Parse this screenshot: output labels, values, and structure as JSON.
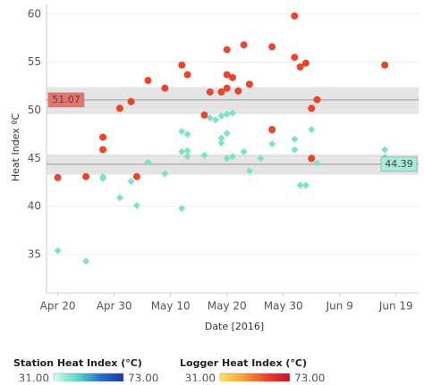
{
  "chart_data": {
    "type": "scatter",
    "x_label": "Date [2016]",
    "y_label": "Heat Index ºC",
    "xlim": [
      "2016-04-18",
      "2016-06-23"
    ],
    "xticks": [
      {
        "value": "2016-04-20",
        "label": "Apr 20"
      },
      {
        "value": "2016-04-30",
        "label": "Apr 30"
      },
      {
        "value": "2016-05-10",
        "label": "May 10"
      },
      {
        "value": "2016-05-20",
        "label": "May 20"
      },
      {
        "value": "2016-05-30",
        "label": "May 30"
      },
      {
        "value": "2016-06-09",
        "label": "Jun 9"
      },
      {
        "value": "2016-06-19",
        "label": "Jun 19"
      }
    ],
    "ylim": [
      31,
      61
    ],
    "yticks": [
      35,
      40,
      45,
      50,
      55,
      60
    ],
    "grid": true,
    "series": [
      {
        "name": "Station Heat Index (°C)",
        "color": "#7de3c8",
        "marker": "diamond",
        "x": [
          "2016-04-20",
          "2016-04-25",
          "2016-04-28",
          "2016-04-28",
          "2016-05-01",
          "2016-05-03",
          "2016-05-04",
          "2016-05-06",
          "2016-05-09",
          "2016-05-12",
          "2016-05-12",
          "2016-05-12",
          "2016-05-13",
          "2016-05-13",
          "2016-05-13",
          "2016-05-16",
          "2016-05-17",
          "2016-05-18",
          "2016-05-19",
          "2016-05-20",
          "2016-05-20",
          "2016-05-21",
          "2016-05-19",
          "2016-05-19",
          "2016-05-20",
          "2016-05-20",
          "2016-05-21",
          "2016-05-23",
          "2016-05-24",
          "2016-05-26",
          "2016-05-28",
          "2016-05-28",
          "2016-06-01",
          "2016-06-01",
          "2016-06-02",
          "2016-06-03",
          "2016-06-04",
          "2016-06-04",
          "2016-06-05",
          "2016-06-17",
          "2016-06-17"
        ],
        "values": [
          35.4,
          34.3,
          43.1,
          42.9,
          40.9,
          42.6,
          40.1,
          44.6,
          43.4,
          39.8,
          47.8,
          45.7,
          45.8,
          47.5,
          45.2,
          45.3,
          49.2,
          49.0,
          49.4,
          49.6,
          49.6,
          49.7,
          46.6,
          47.1,
          47.6,
          45.0,
          45.2,
          45.7,
          43.7,
          45.0,
          46.5,
          47.8,
          47.0,
          45.9,
          42.2,
          42.2,
          48.0,
          44.9,
          44.5,
          45.9,
          45.1
        ]
      },
      {
        "name": "Logger Heat Index (°C)",
        "color": "#e8452c",
        "marker": "circle",
        "x": [
          "2016-04-20",
          "2016-04-25",
          "2016-04-28",
          "2016-04-28",
          "2016-05-01",
          "2016-05-03",
          "2016-05-04",
          "2016-05-06",
          "2016-05-09",
          "2016-05-12",
          "2016-05-13",
          "2016-05-16",
          "2016-05-17",
          "2016-05-19",
          "2016-05-20",
          "2016-05-20",
          "2016-05-20",
          "2016-05-21",
          "2016-05-22",
          "2016-05-23",
          "2016-05-24",
          "2016-05-28",
          "2016-05-28",
          "2016-06-01",
          "2016-06-01",
          "2016-06-02",
          "2016-06-03",
          "2016-06-04",
          "2016-06-05",
          "2016-06-04",
          "2016-06-17"
        ],
        "values": [
          43.0,
          43.1,
          47.2,
          45.9,
          50.2,
          50.9,
          43.1,
          53.1,
          52.3,
          54.7,
          53.7,
          49.5,
          51.9,
          51.9,
          52.3,
          56.3,
          53.7,
          53.4,
          52.0,
          56.8,
          52.7,
          48.0,
          56.6,
          59.8,
          55.5,
          54.5,
          54.9,
          50.2,
          51.1,
          45.0,
          54.7
        ]
      }
    ],
    "reference_lines": [
      {
        "value": 51.07,
        "label": "51.07",
        "band": [
          49.6,
          52.4
        ],
        "color": "#e8736a",
        "side": "left"
      },
      {
        "value": 44.39,
        "label": "44.39",
        "band": [
          43.3,
          45.4
        ],
        "color": "#a6ecd8",
        "side": "right"
      }
    ],
    "color_legends": [
      {
        "title": "Station Heat Index (°C)",
        "colors": [
          "#d9fbef",
          "#5fd9c4",
          "#2a6fd0",
          "#1a3a9a"
        ],
        "range": [
          {
            "value": 31,
            "label": "31.00"
          },
          {
            "value": 73,
            "label": "73.00"
          }
        ]
      },
      {
        "title": "Logger Heat Index (°C)",
        "colors": [
          "#fde26a",
          "#f5a03a",
          "#e8452c",
          "#c8102e"
        ],
        "range": [
          {
            "value": 31,
            "label": "31.00"
          },
          {
            "value": 73,
            "label": "73.00"
          }
        ]
      }
    ]
  }
}
